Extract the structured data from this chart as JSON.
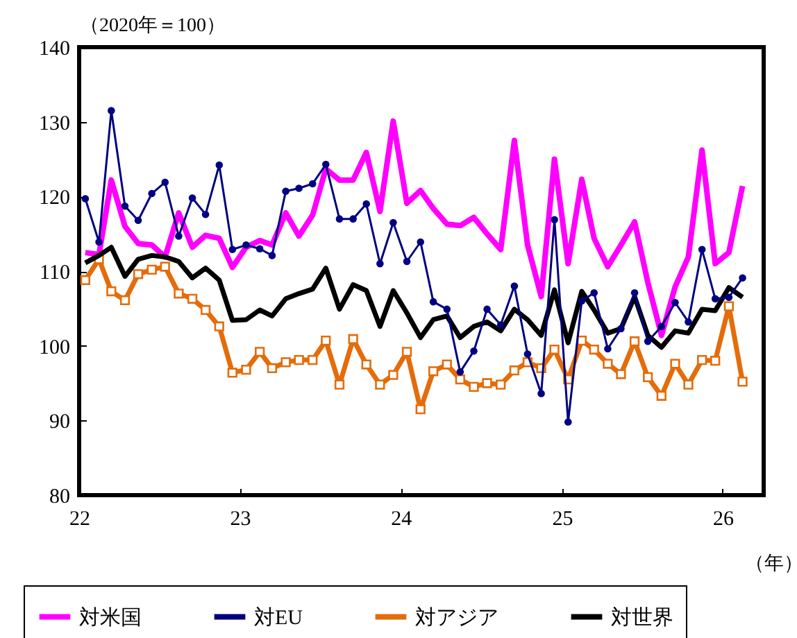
{
  "chart_data": {
    "type": "line",
    "ylabel": "（2020年＝100）",
    "xlabel": "（年）",
    "x": [
      "2022-01-15",
      "2022-02-15",
      "2022-03-15",
      "2022-04-15",
      "2022-05-15",
      "2022-06-15",
      "2022-07-15",
      "2022-08-15",
      "2022-09-15",
      "2022-10-15",
      "2022-11-15",
      "2022-12-15",
      "2023-01-15",
      "2023-02-15",
      "2023-03-15",
      "2023-04-15",
      "2023-05-15",
      "2023-06-15",
      "2023-07-15",
      "2023-08-15",
      "2023-09-15",
      "2023-10-15",
      "2023-11-15",
      "2023-12-15",
      "2024-01-15",
      "2024-02-15",
      "2024-03-15",
      "2024-04-15",
      "2024-05-15",
      "2024-06-15",
      "2024-07-15",
      "2024-08-15",
      "2024-09-15",
      "2024-10-15",
      "2024-11-15",
      "2024-12-15",
      "2025-01-15",
      "2025-02-15",
      "2025-03-15",
      "2025-04-15",
      "2025-05-15",
      "2025-06-15",
      "2025-07-15",
      "2025-08-15",
      "2025-09-15",
      "2025-10-15",
      "2025-11-15",
      "2025-12-15",
      "2026-01-15",
      "2026-02-15"
    ],
    "series": [
      {
        "name": "対米国",
        "color": "#ff00ff",
        "marker": "none",
        "values": [
          112.5,
          112.2,
          122.2,
          116.0,
          113.7,
          113.5,
          111.9,
          117.8,
          113.2,
          114.8,
          114.4,
          110.5,
          113.2,
          114.1,
          113.5,
          117.8,
          114.7,
          117.5,
          123.7,
          122.2,
          122.2,
          125.9,
          118.0,
          130.1,
          119.1,
          120.8,
          118.4,
          116.3,
          116.1,
          117.2,
          115.0,
          112.9,
          127.5,
          113.5,
          106.6,
          125.0,
          111.0,
          122.3,
          114.4,
          110.6,
          113.5,
          116.6,
          108.5,
          101.4,
          107.9,
          111.9,
          126.2,
          111.0,
          112.5,
          121.4
        ]
      },
      {
        "name": "対EU",
        "color": "#000080",
        "marker": "circle",
        "values": [
          119.7,
          113.9,
          131.5,
          118.7,
          116.8,
          120.4,
          121.9,
          114.7,
          119.8,
          117.6,
          124.2,
          112.9,
          113.5,
          113.0,
          112.1,
          120.7,
          121.1,
          121.7,
          124.3,
          117.0,
          117.0,
          119.0,
          111.0,
          116.5,
          111.3,
          113.9,
          105.9,
          104.9,
          96.5,
          99.3,
          104.9,
          102.8,
          108.0,
          98.9,
          93.6,
          116.9,
          89.8,
          106.0,
          107.1,
          99.6,
          102.3,
          107.1,
          100.6,
          102.6,
          105.8,
          103.2,
          112.9,
          106.3,
          106.5,
          109.1
        ]
      },
      {
        "name": "対アジア",
        "color": "#e46c0a",
        "marker": "square",
        "values": [
          108.8,
          111.6,
          107.3,
          106.1,
          109.6,
          110.2,
          110.6,
          107.0,
          106.3,
          104.8,
          102.6,
          96.4,
          96.8,
          99.2,
          97.0,
          97.8,
          98.1,
          98.1,
          100.7,
          94.8,
          100.9,
          97.5,
          94.8,
          96.1,
          99.2,
          91.5,
          96.6,
          97.5,
          95.5,
          94.5,
          95.0,
          94.8,
          96.7,
          97.8,
          97.0,
          99.5,
          95.5,
          100.7,
          99.5,
          97.6,
          96.2,
          100.6,
          95.8,
          93.3,
          97.6,
          94.8,
          98.1,
          98.0,
          105.3,
          95.2
        ]
      },
      {
        "name": "対世界",
        "color": "#000000",
        "marker": "none",
        "values": [
          111.1,
          112.1,
          113.2,
          109.3,
          111.6,
          112.1,
          111.9,
          111.3,
          109.1,
          110.4,
          108.8,
          103.4,
          103.5,
          104.8,
          104.0,
          106.3,
          107.0,
          107.6,
          110.4,
          104.9,
          108.2,
          107.4,
          102.6,
          107.4,
          104.4,
          101.1,
          103.5,
          104.0,
          101.1,
          102.6,
          103.2,
          102.0,
          104.9,
          103.5,
          101.4,
          107.5,
          100.4,
          107.3,
          104.8,
          101.7,
          102.3,
          106.6,
          101.4,
          99.8,
          102.0,
          101.7,
          104.9,
          104.7,
          107.8,
          106.5
        ]
      }
    ],
    "xlim": [
      "2022-01-01",
      "2026-04-04"
    ],
    "xticks": [
      {
        "value": "2022-01-01",
        "label": "22"
      },
      {
        "value": "2023-01-01",
        "label": "23"
      },
      {
        "value": "2024-01-01",
        "label": "24"
      },
      {
        "value": "2025-01-01",
        "label": "25"
      },
      {
        "value": "2026-01-01",
        "label": "26"
      }
    ],
    "ylim": [
      80,
      140
    ],
    "yticks": [
      80,
      90,
      100,
      110,
      120,
      130,
      140
    ],
    "grid": false,
    "legend": "bottom"
  }
}
